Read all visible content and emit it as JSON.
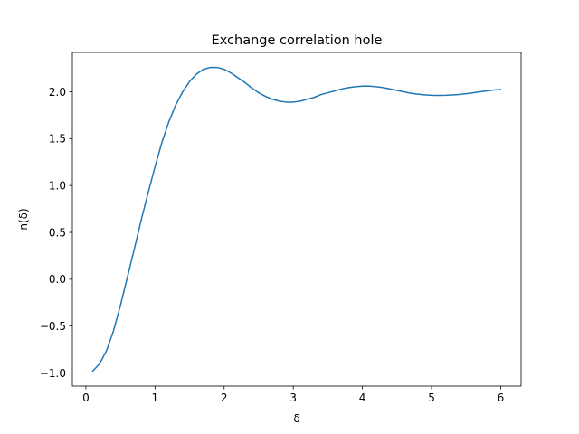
{
  "chart_data": {
    "type": "line",
    "title": "Exchange correlation hole",
    "xlabel": "δ",
    "ylabel": "n(δ)",
    "xlim": [
      -0.195,
      6.295
    ],
    "ylim": [
      -1.14,
      2.42
    ],
    "grid": false,
    "xticks": [
      0,
      1,
      2,
      3,
      4,
      5,
      6
    ],
    "xtick_labels": [
      "0",
      "1",
      "2",
      "3",
      "4",
      "5",
      "6"
    ],
    "yticks": [
      -1.0,
      -0.5,
      0.0,
      0.5,
      1.0,
      1.5,
      2.0
    ],
    "ytick_labels": [
      "−1.0",
      "−0.5",
      "0.0",
      "0.5",
      "1.0",
      "1.5",
      "2.0"
    ],
    "series": [
      {
        "color": "#1f77b4",
        "x": [
          0.1,
          0.2,
          0.3,
          0.4,
          0.5,
          0.6,
          0.7,
          0.8,
          0.9,
          1.0,
          1.1,
          1.2,
          1.3,
          1.4,
          1.5,
          1.6,
          1.7,
          1.8,
          1.9,
          2.0,
          2.1,
          2.2,
          2.3,
          2.4,
          2.5,
          2.6,
          2.7,
          2.8,
          2.9,
          3.0,
          3.1,
          3.2,
          3.3,
          3.4,
          3.5,
          3.6,
          3.7,
          3.8,
          3.9,
          4.0,
          4.1,
          4.2,
          4.3,
          4.4,
          4.5,
          4.6,
          4.7,
          4.8,
          4.9,
          5.0,
          5.1,
          5.2,
          5.3,
          5.4,
          5.5,
          5.6,
          5.7,
          5.8,
          5.9,
          6.0
        ],
        "y": [
          -0.98,
          -0.9,
          -0.76,
          -0.55,
          -0.28,
          0.02,
          0.32,
          0.63,
          0.92,
          1.2,
          1.46,
          1.68,
          1.86,
          2.0,
          2.11,
          2.19,
          2.24,
          2.26,
          2.26,
          2.24,
          2.2,
          2.15,
          2.1,
          2.04,
          1.99,
          1.95,
          1.92,
          1.9,
          1.89,
          1.89,
          1.9,
          1.92,
          1.94,
          1.97,
          1.99,
          2.01,
          2.03,
          2.045,
          2.055,
          2.06,
          2.06,
          2.055,
          2.045,
          2.03,
          2.015,
          2.0,
          1.985,
          1.975,
          1.968,
          1.963,
          1.962,
          1.963,
          1.966,
          1.972,
          1.98,
          1.99,
          2.0,
          2.01,
          2.02,
          2.025
        ]
      }
    ]
  }
}
